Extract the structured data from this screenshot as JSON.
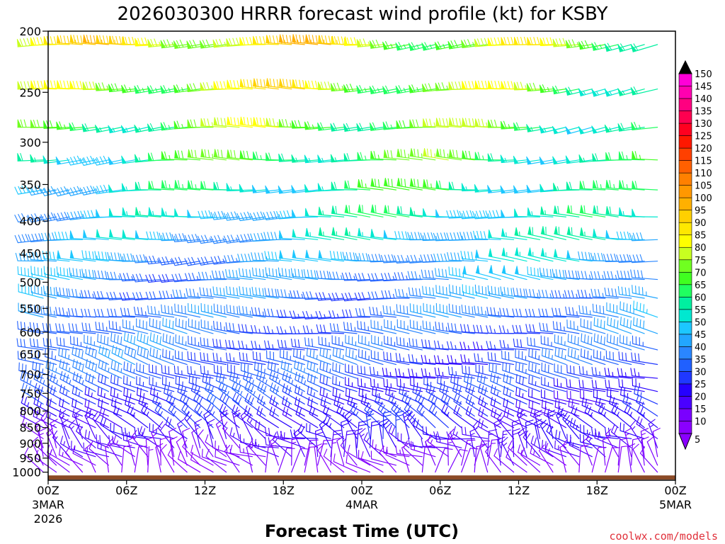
{
  "title": "2026030300 HRRR forecast wind profile (kt) for KSBY",
  "credit": "coolwx.com/models",
  "chart_data": {
    "type": "wind-barb-profile",
    "title": "2026030300 HRRR forecast wind profile (kt) for KSBY",
    "xlabel": "Forecast Time (UTC)",
    "ylabel": "",
    "y_axis": {
      "units": "hPa",
      "scale": "log-pressure",
      "range": [
        1030,
        200
      ],
      "ticks": [
        200,
        250,
        300,
        350,
        400,
        450,
        500,
        550,
        600,
        650,
        700,
        750,
        800,
        850,
        900,
        950,
        1000
      ]
    },
    "x_axis": {
      "range_hours": [
        0,
        48
      ],
      "ticks": [
        {
          "hour": 0,
          "label": "00Z",
          "date": "3MAR",
          "year": "2026"
        },
        {
          "hour": 6,
          "label": "06Z",
          "date": "",
          "year": ""
        },
        {
          "hour": 12,
          "label": "12Z",
          "date": "",
          "year": ""
        },
        {
          "hour": 18,
          "label": "18Z",
          "date": "",
          "year": ""
        },
        {
          "hour": 24,
          "label": "00Z",
          "date": "4MAR",
          "year": ""
        },
        {
          "hour": 30,
          "label": "06Z",
          "date": "",
          "year": ""
        },
        {
          "hour": 36,
          "label": "12Z",
          "date": "",
          "year": ""
        },
        {
          "hour": 42,
          "label": "18Z",
          "date": "",
          "year": ""
        },
        {
          "hour": 48,
          "label": "00Z",
          "date": "5MAR",
          "year": ""
        }
      ]
    },
    "colorbar": {
      "units": "kt",
      "levels": [
        5,
        10,
        15,
        20,
        25,
        30,
        35,
        40,
        45,
        50,
        55,
        60,
        65,
        70,
        75,
        80,
        85,
        90,
        95,
        100,
        105,
        110,
        115,
        120,
        125,
        130,
        135,
        140,
        145,
        150
      ],
      "colors": [
        "#8a00ff",
        "#7a00ff",
        "#4a00ff",
        "#2600ff",
        "#1f38ff",
        "#2060ff",
        "#2a86ff",
        "#22a6ff",
        "#1cc7ff",
        "#00e8d0",
        "#00f0a0",
        "#20ff60",
        "#40ff20",
        "#70ff20",
        "#c8ff20",
        "#ffff00",
        "#ffe800",
        "#ffd000",
        "#ffb000",
        "#ff9800",
        "#ff8000",
        "#ff6000",
        "#ff4000",
        "#ff1800",
        "#ff0020",
        "#ff0050",
        "#ff0080",
        "#ff00b0",
        "#ff00d8",
        "#ff00ff"
      ],
      "extend": "both"
    },
    "rows": [
      {
        "pressure": 210,
        "speed": 78,
        "dir": 265
      },
      {
        "pressure": 247,
        "speed": 72,
        "dir": 265
      },
      {
        "pressure": 284,
        "speed": 65,
        "dir": 265
      },
      {
        "pressure": 320,
        "speed": 60,
        "dir": 268
      },
      {
        "pressure": 357,
        "speed": 55,
        "dir": 268
      },
      {
        "pressure": 394,
        "speed": 50,
        "dir": 270
      },
      {
        "pressure": 428,
        "speed": 47,
        "dir": 272
      },
      {
        "pressure": 463,
        "speed": 43,
        "dir": 272
      },
      {
        "pressure": 495,
        "speed": 40,
        "dir": 275
      },
      {
        "pressure": 530,
        "speed": 38,
        "dir": 275
      },
      {
        "pressure": 568,
        "speed": 36,
        "dir": 278
      },
      {
        "pressure": 603,
        "speed": 34,
        "dir": 280
      },
      {
        "pressure": 640,
        "speed": 33,
        "dir": 282
      },
      {
        "pressure": 675,
        "speed": 32,
        "dir": 285
      },
      {
        "pressure": 710,
        "speed": 30,
        "dir": 285
      },
      {
        "pressure": 745,
        "speed": 28,
        "dir": 290
      },
      {
        "pressure": 780,
        "speed": 26,
        "dir": 295
      },
      {
        "pressure": 815,
        "speed": 24,
        "dir": 300
      },
      {
        "pressure": 850,
        "speed": 22,
        "dir": 305
      },
      {
        "pressure": 885,
        "speed": 20,
        "dir": 310
      },
      {
        "pressure": 915,
        "speed": 18,
        "dir": 315
      },
      {
        "pressure": 945,
        "speed": 15,
        "dir": 320
      },
      {
        "pressure": 975,
        "speed": 12,
        "dir": 330
      },
      {
        "pressure": 1000,
        "speed": 10,
        "dir": 340
      }
    ],
    "surface_band": {
      "from_pressure": 1012,
      "to_pressure": 1030,
      "color": "#8b4a26"
    }
  }
}
